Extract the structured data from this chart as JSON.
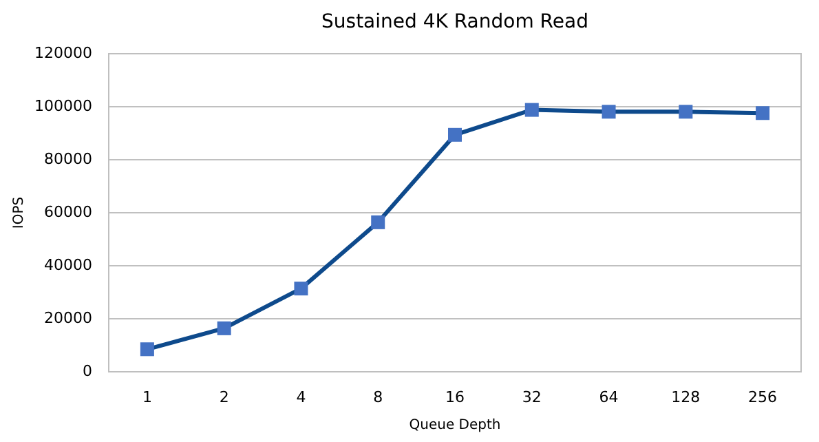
{
  "chart_data": {
    "type": "line",
    "title": "Sustained 4K Random Read",
    "xlabel": "Queue Depth",
    "ylabel": "IOPS",
    "categories": [
      "1",
      "2",
      "4",
      "8",
      "16",
      "32",
      "64",
      "128",
      "256"
    ],
    "series": [
      {
        "color": "#0e4a8c",
        "values": [
          8500,
          16400,
          31400,
          56400,
          89400,
          98800,
          98100,
          98100,
          97600
        ]
      }
    ],
    "ylim": [
      0,
      120000
    ],
    "yticks": [
      0,
      20000,
      40000,
      60000,
      80000,
      100000,
      120000
    ],
    "grid": "y",
    "marker": "square",
    "line_style": "solid"
  }
}
